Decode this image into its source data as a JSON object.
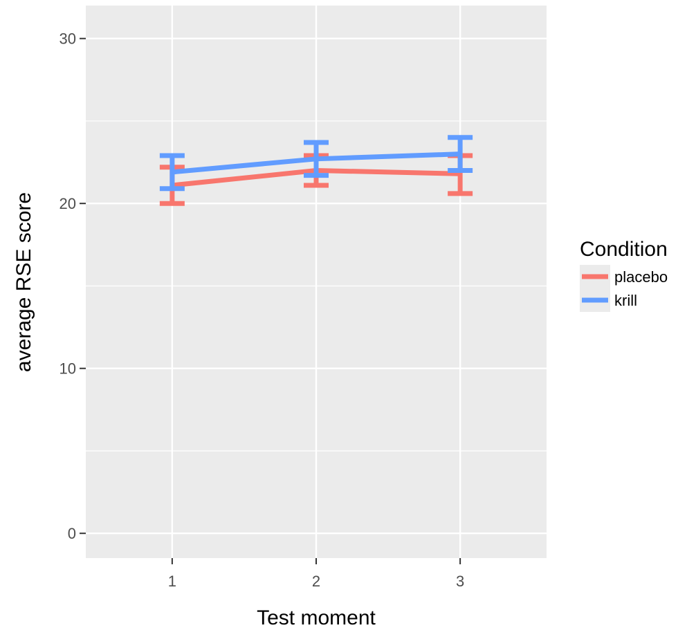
{
  "chart_data": {
    "type": "line",
    "title": "",
    "xlabel": "Test moment",
    "ylabel": "average RSE score",
    "categories": [
      "1",
      "2",
      "3"
    ],
    "xlim": [
      0.4,
      3.6
    ],
    "ylim": [
      -1.5,
      32
    ],
    "yticks": [
      0,
      10,
      20,
      30
    ],
    "grid": true,
    "legend": {
      "title": "Condition",
      "position": "right"
    },
    "series": [
      {
        "name": "placebo",
        "color": "#f8766d",
        "values": [
          21.1,
          22.0,
          21.8
        ],
        "lower": [
          20.0,
          21.1,
          20.6
        ],
        "upper": [
          22.2,
          22.9,
          22.9
        ]
      },
      {
        "name": "krill",
        "color": "#619cff",
        "values": [
          21.9,
          22.7,
          23.0
        ],
        "lower": [
          20.9,
          21.7,
          22.0
        ],
        "upper": [
          22.9,
          23.7,
          24.0
        ]
      }
    ]
  }
}
